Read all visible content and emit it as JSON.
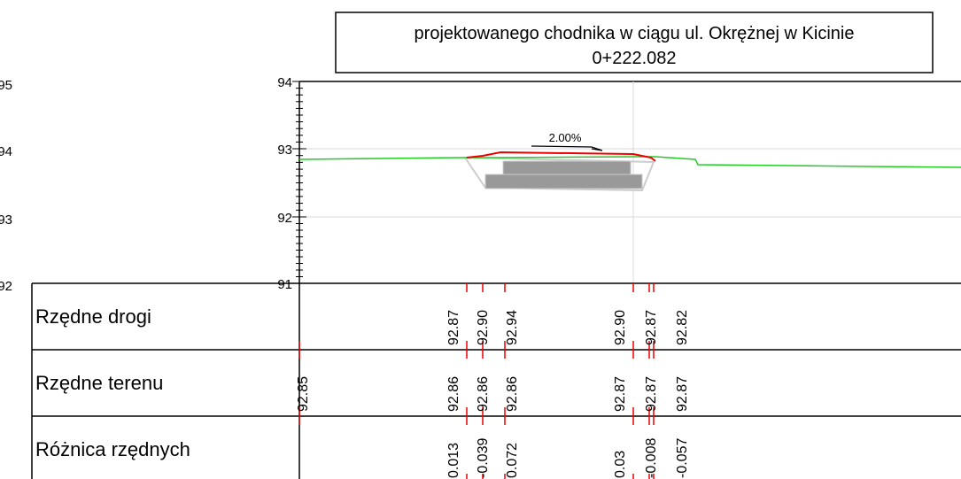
{
  "title": {
    "line1": "projektowanego chodnika w ciągu ul. Okrężnej w Kicinie",
    "line2": "0+222.082"
  },
  "left_labels": [
    "95",
    "94",
    "93",
    "92"
  ],
  "axis": {
    "labels": [
      "94",
      "93",
      "92",
      "91"
    ]
  },
  "slope": "2.00%",
  "table": {
    "rows": [
      {
        "label": "Rzędne drogi",
        "values": [
          "92.87",
          "92.90",
          "92.94",
          "92.90",
          "92.87",
          "92.82"
        ]
      },
      {
        "label": "Rzędne terenu",
        "values": [
          "92.85",
          "92.86",
          "92.86",
          "92.86",
          "92.87",
          "92.87",
          "92.87"
        ]
      },
      {
        "label": "Różnica rzędnych",
        "values": [
          "0.013",
          "-0.039",
          "0.072",
          "0.03",
          "-0.008",
          "-0.057"
        ]
      }
    ]
  }
}
